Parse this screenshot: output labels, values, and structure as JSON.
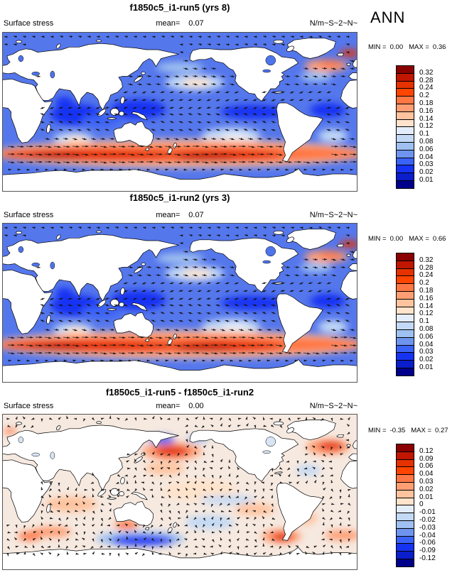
{
  "season": "ANN",
  "shared": {
    "variable_label": "Surface stress",
    "mean_label": "mean=",
    "min_label": "MIN =",
    "max_label": "MAX ="
  },
  "palette": [
    "#8B0000",
    "#C11600",
    "#E53200",
    "#FF4500",
    "#FF7744",
    "#FF9E73",
    "#FFC39E",
    "#FFE3CB",
    "#E4EDFA",
    "#C3D9F5",
    "#9FC0F0",
    "#6E94F0",
    "#3B62F7",
    "#1632F2",
    "#0A1ECC",
    "#00008B"
  ],
  "chart_data": [
    {
      "type": "heatmap",
      "title": "f1850c5_i1-run5 (yrs 8)",
      "variable": "Surface stress",
      "units": "N/m~S~2~N~",
      "season": "ANN",
      "mean": "0.07",
      "min": "0.00",
      "max": "0.36",
      "levels": [
        "0.32",
        "0.28",
        "0.24",
        "0.2",
        "0.18",
        "0.16",
        "0.14",
        "0.12",
        "0.1",
        "0.08",
        "0.06",
        "0.04",
        "0.03",
        "0.02",
        "0.01"
      ],
      "legend_position": "right",
      "map": {
        "base": "#5577EC",
        "lake": "#4E74EC",
        "arrows": "flow",
        "blobs": [
          [
            75,
            -3,
            26,
            12,
            "#1632F2"
          ],
          [
            63,
            11,
            9,
            6,
            "#1632F2"
          ],
          [
            138,
            3,
            28,
            11,
            "#1632F2"
          ],
          [
            255,
            0,
            34,
            8,
            "#1632F2"
          ],
          [
            330,
            2,
            18,
            8,
            "#1632F2"
          ],
          [
            100,
            -10,
            20,
            7,
            "#3B62F7"
          ],
          [
            195,
            33,
            30,
            9,
            "#C3D9F5"
          ],
          [
            197,
            33,
            15,
            4.5,
            "#FFE3CB"
          ],
          [
            232,
            -27,
            30,
            9,
            "#C3D9F5"
          ],
          [
            236,
            -27,
            14,
            4.5,
            "#E4EDFA"
          ],
          [
            335,
            -27,
            15,
            7,
            "#C3D9F5"
          ],
          [
            72,
            -30,
            20,
            7,
            "#C3D9F5"
          ],
          [
            75,
            -31,
            9,
            3.5,
            "#FFE3CB"
          ],
          [
            318,
            40,
            16,
            6,
            "#9FC0F0"
          ],
          [
            180,
            50,
            24,
            6,
            "#9FC0F0"
          ],
          [
            180,
            -47,
            190,
            16,
            "#FFC39E"
          ],
          [
            180,
            -47,
            190,
            11,
            "#FF7744"
          ],
          [
            90,
            -49,
            90,
            6.5,
            "#E53200"
          ],
          [
            225,
            -49,
            60,
            6,
            "#E53200"
          ],
          [
            55,
            -50,
            28,
            4,
            "#C11600"
          ],
          [
            205,
            -51,
            30,
            4,
            "#C11600"
          ],
          [
            328,
            52,
            22,
            7,
            "#FF9E73"
          ],
          [
            333,
            54,
            12,
            4,
            "#FF7744"
          ],
          [
            352,
            66,
            10,
            4,
            "#E53200"
          ]
        ]
      }
    },
    {
      "type": "heatmap",
      "title": "f1850c5_i1-run2 (yrs 3)",
      "variable": "Surface stress",
      "units": "N/m~S~2~N~",
      "season": "ANN",
      "mean": "0.07",
      "min": "0.00",
      "max": "0.66",
      "levels": [
        "0.32",
        "0.28",
        "0.24",
        "0.2",
        "0.18",
        "0.16",
        "0.14",
        "0.12",
        "0.1",
        "0.08",
        "0.06",
        "0.04",
        "0.03",
        "0.02",
        "0.01"
      ],
      "legend_position": "right",
      "map": {
        "base": "#5577EC",
        "lake": "#4E74EC",
        "arrows": "flow",
        "blobs": [
          [
            75,
            -3,
            26,
            12,
            "#1632F2"
          ],
          [
            63,
            11,
            9,
            6,
            "#1632F2"
          ],
          [
            138,
            3,
            28,
            11,
            "#1632F2"
          ],
          [
            255,
            0,
            34,
            8,
            "#1632F2"
          ],
          [
            330,
            2,
            18,
            8,
            "#1632F2"
          ],
          [
            100,
            -10,
            20,
            7,
            "#3B62F7"
          ],
          [
            195,
            33,
            30,
            9,
            "#C3D9F5"
          ],
          [
            197,
            33,
            15,
            4.5,
            "#FFE3CB"
          ],
          [
            232,
            -27,
            30,
            9,
            "#C3D9F5"
          ],
          [
            236,
            -27,
            14,
            4.5,
            "#E4EDFA"
          ],
          [
            335,
            -27,
            15,
            7,
            "#C3D9F5"
          ],
          [
            72,
            -30,
            20,
            7,
            "#C3D9F5"
          ],
          [
            75,
            -31,
            9,
            3.5,
            "#FFE3CB"
          ],
          [
            318,
            40,
            16,
            6,
            "#9FC0F0"
          ],
          [
            180,
            50,
            24,
            6,
            "#9FC0F0"
          ],
          [
            180,
            -47,
            190,
            16,
            "#FFC39E"
          ],
          [
            180,
            -47,
            190,
            11,
            "#FF7744"
          ],
          [
            90,
            -49,
            90,
            6.5,
            "#E53200"
          ],
          [
            225,
            -49,
            60,
            6,
            "#E53200"
          ],
          [
            55,
            -50,
            28,
            4,
            "#C11600"
          ],
          [
            205,
            -51,
            30,
            4,
            "#C11600"
          ],
          [
            328,
            52,
            22,
            7,
            "#FF9E73"
          ],
          [
            333,
            54,
            12,
            4,
            "#FF7744"
          ],
          [
            352,
            66,
            10,
            4,
            "#E53200"
          ]
        ]
      }
    },
    {
      "type": "heatmap",
      "title": "f1850c5_i1-run5 - f1850c5_i1-run2",
      "variable": "Surface stress",
      "units": "N/m~S~2~N~",
      "season": "ANN",
      "mean": "0.00",
      "min": "-0.35",
      "max": "0.27",
      "levels": [
        "0.12",
        "0.09",
        "0.06",
        "0.04",
        "0.03",
        "0.02",
        "0.01",
        "0",
        "-0.01",
        "-0.02",
        "-0.03",
        "-0.04",
        "-0.06",
        "-0.09",
        "-0.12"
      ],
      "legend_position": "right",
      "map": {
        "base": "#F6E9E0",
        "lake": "#D8E4F4",
        "arrows": "mottle",
        "blobs": [
          [
            172,
            47,
            30,
            10,
            "#FF9E73"
          ],
          [
            172,
            47,
            18,
            6,
            "#E53200"
          ],
          [
            162,
            60,
            13,
            5,
            "#3B62F7"
          ],
          [
            198,
            61,
            11,
            4,
            "#9FC0F0"
          ],
          [
            133,
            57,
            8,
            4,
            "#6E94F0"
          ],
          [
            330,
            52,
            22,
            9,
            "#FF9E73"
          ],
          [
            333,
            53,
            13,
            5,
            "#E53200"
          ],
          [
            140,
            -54,
            45,
            9,
            "#9FC0F0"
          ],
          [
            142,
            -56,
            32,
            6,
            "#1632F2"
          ],
          [
            283,
            -51,
            20,
            8,
            "#FF9E73"
          ],
          [
            284,
            -52,
            11,
            5,
            "#E53200"
          ],
          [
            50,
            -46,
            20,
            6,
            "#FF9E73"
          ],
          [
            28,
            -51,
            12,
            5,
            "#FF7744"
          ],
          [
            70,
            -14,
            26,
            9,
            "#FFC39E"
          ],
          [
            200,
            2,
            38,
            12,
            "#FFE3CB"
          ],
          [
            228,
            -9,
            28,
            5,
            "#C3D9F5"
          ],
          [
            210,
            -35,
            25,
            8,
            "#C3D9F5"
          ],
          [
            256,
            -20,
            20,
            7,
            "#FFC39E"
          ],
          [
            126,
            -38,
            12,
            5,
            "#FF7744"
          ],
          [
            8,
            70,
            7,
            3,
            "#FF7744"
          ],
          [
            305,
            -30,
            14,
            8,
            "#FFC39E"
          ],
          [
            345,
            -50,
            18,
            6,
            "#FF9E73"
          ],
          [
            165,
            27,
            20,
            7,
            "#FFC39E"
          ],
          [
            310,
            25,
            12,
            6,
            "#C3D9F5"
          ]
        ]
      }
    }
  ]
}
